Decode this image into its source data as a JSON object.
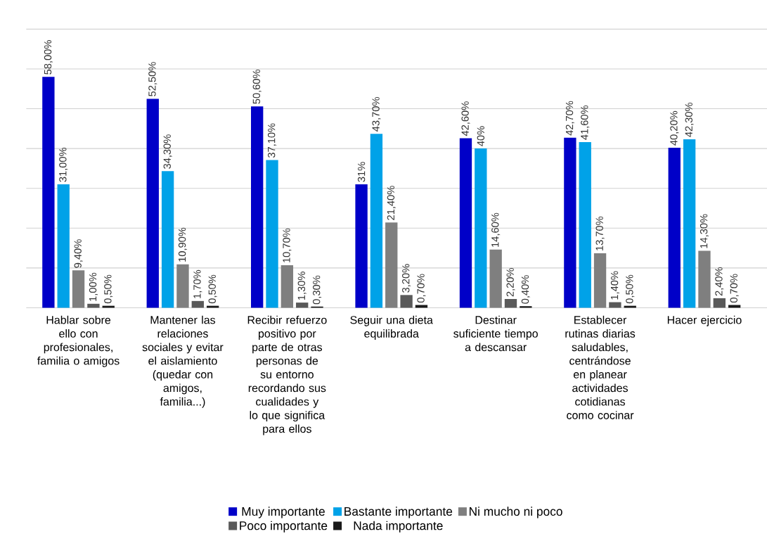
{
  "chart_data": {
    "type": "bar",
    "categories": [
      "Hablar sobre ello con profesionales, familia o amigos",
      "Mantener las relaciones sociales y evitar el aislamiento (quedar con amigos, familia...)",
      "Recibir refuerzo positivo por parte de otras personas de su entorno recordando sus cualidades y lo que significa para ellos",
      "Seguir una dieta equilibrada",
      "Destinar suficiente tiempo a descansar",
      "Establecer rutinas diarias saludables, centrándose en planear actividades cotidianas como cocinar",
      "Hacer ejercicio"
    ],
    "series": [
      {
        "name": "Muy importante",
        "color": "#0000c8",
        "values": [
          58.0,
          52.5,
          50.6,
          31,
          42.6,
          42.7,
          40.2
        ],
        "value_labels": [
          "58,00%",
          "52,50%",
          "50,60%",
          "31%",
          "42,60%",
          "42,70%",
          "40,20%"
        ]
      },
      {
        "name": "Bastante importante",
        "color": "#00a2e8",
        "values": [
          31.0,
          34.3,
          37.1,
          43.7,
          40,
          41.6,
          42.3
        ],
        "value_labels": [
          "31,00%",
          "34,30%",
          "37,10%",
          "43,70%",
          "40%",
          "41,60%",
          "42,30%"
        ]
      },
      {
        "name": "Ni mucho ni poco",
        "color": "#7f7f7f",
        "values": [
          9.4,
          10.9,
          10.7,
          21.4,
          14.6,
          13.7,
          14.3
        ],
        "value_labels": [
          "9,40%",
          "10,90%",
          "10,70%",
          "21,40%",
          "14,60%",
          "13,70%",
          "14,30%"
        ]
      },
      {
        "name": "Poco importante",
        "color": "#595959",
        "values": [
          1.0,
          1.7,
          1.3,
          3.2,
          2.2,
          1.4,
          2.4
        ],
        "value_labels": [
          "1,00%",
          "1,70%",
          "1,30%",
          "3,20%",
          "2,20%",
          "1,40%",
          "2,40%"
        ]
      },
      {
        "name": "Nada importante",
        "color": "#1a1a1a",
        "values": [
          0.5,
          0.5,
          0.3,
          0.7,
          0.4,
          0.5,
          0.7
        ],
        "value_labels": [
          "0,50%",
          "0,50%",
          "0,30%",
          "0,70%",
          "0,40%",
          "0,50%",
          "0,70%"
        ]
      }
    ],
    "ylim": [
      0,
      70
    ],
    "yticks": [
      {
        "value": 0,
        "label": null
      },
      {
        "value": 10,
        "label": null
      },
      {
        "value": 20,
        "label": null
      },
      {
        "value": 30,
        "label": null
      },
      {
        "value": 40,
        "label": null
      },
      {
        "value": 50,
        "label": null
      },
      {
        "value": 60,
        "label": null
      },
      {
        "value": 70,
        "label": null
      }
    ],
    "grid": "y",
    "legend": "bottom",
    "tick_labels": "x"
  }
}
